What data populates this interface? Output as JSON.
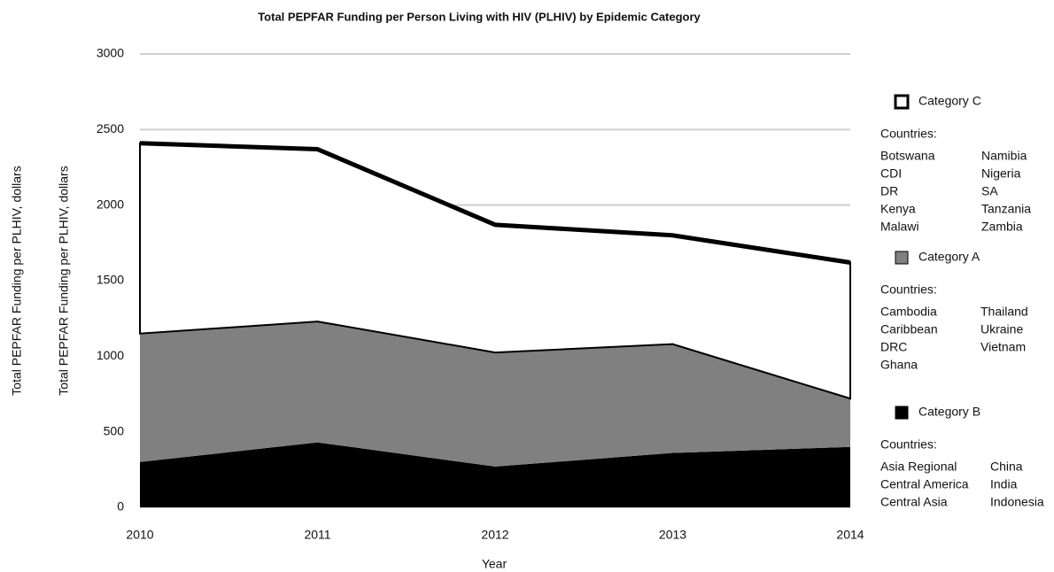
{
  "chart_data": {
    "type": "stacked_area",
    "title": "Total PEPFAR Funding per Person Living with HIV (PLHIV) by Epidemic Category",
    "x_label": "Year",
    "y_labels": [
      "Total PEPFAR Funding per PLHIV, dollars",
      "Total PEPFAR Funding per PLHIV, dollars"
    ],
    "x": [
      2010,
      2011,
      2012,
      2013,
      2014
    ],
    "xlim": [
      2010,
      2014
    ],
    "xticks": [
      2010,
      2011,
      2012,
      2013,
      2014
    ],
    "ylim": [
      0,
      3000
    ],
    "yticks": [
      0,
      500,
      1000,
      1500,
      2000,
      2500,
      3000
    ],
    "grid": true,
    "legend": "right",
    "series": [
      {
        "name": "Category C",
        "color": "#ffffff",
        "values": [
          1260,
          1140,
          845,
          720,
          900
        ],
        "countries_heading": "Countries:",
        "countries": [
          "Botswana",
          "CDI",
          "DR",
          "Kenya",
          "Malawi",
          "Namibia",
          "Nigeria",
          "SA",
          "Tanzania",
          "Zambia"
        ]
      },
      {
        "name": "Category A",
        "color": "#808080",
        "values": [
          850,
          800,
          755,
          720,
          320
        ],
        "countries_heading": "Countries:",
        "countries": [
          "Cambodia",
          "Caribbean",
          "DRC",
          "Ghana",
          "Thailand",
          "Ukraine",
          "Vietnam"
        ]
      },
      {
        "name": "Category B",
        "color": "#000000",
        "values": [
          300,
          430,
          270,
          360,
          400
        ],
        "countries_heading": "Countries:",
        "countries": [
          "Asia Regional",
          "Central America",
          "Central Asia",
          "China",
          "India",
          "Indonesia"
        ]
      }
    ]
  }
}
